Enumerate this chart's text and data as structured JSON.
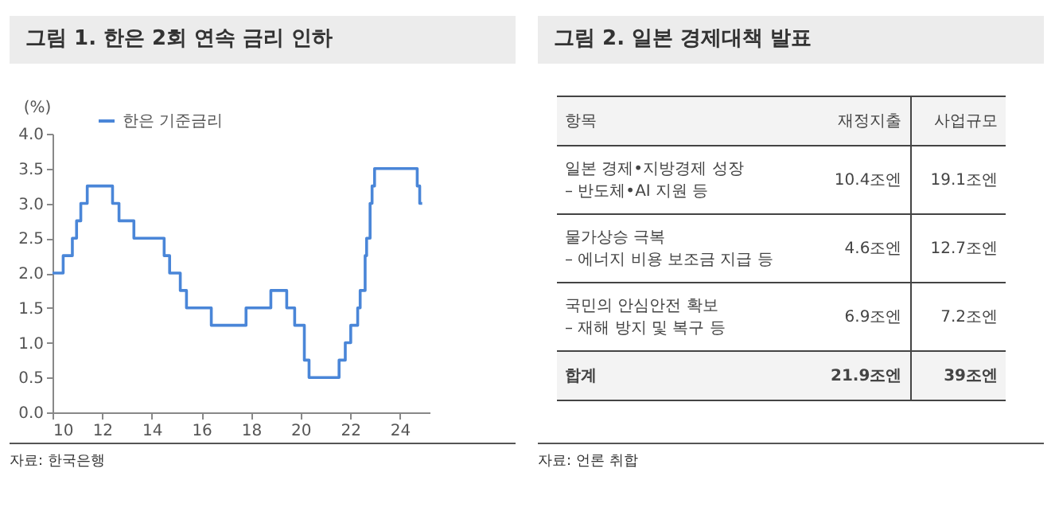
{
  "chart_data": [
    {
      "type": "step",
      "title": "그림 1. 한은 2회 연속 금리 인하",
      "ylabel": "(%)",
      "annotations": [
        "자료: 한국은행"
      ],
      "legend": "top left",
      "grid": false,
      "series": [
        {
          "name": "한은 기준금리",
          "color": "#4a86d8",
          "x": [
            10.0,
            10.43,
            10.8,
            10.97,
            11.14,
            11.4,
            12.42,
            12.68,
            13.28,
            14.5,
            14.72,
            15.15,
            15.4,
            16.4,
            17.8,
            18.8,
            19.44,
            19.76,
            20.15,
            20.34,
            21.55,
            21.8,
            22.02,
            22.3,
            22.4,
            22.6,
            22.66,
            22.8,
            22.88,
            22.98,
            24.7,
            24.8,
            24.9
          ],
          "values": [
            2.0,
            2.25,
            2.5,
            2.75,
            3.0,
            3.25,
            3.0,
            2.75,
            2.5,
            2.25,
            2.0,
            1.75,
            1.5,
            1.25,
            1.5,
            1.75,
            1.5,
            1.25,
            0.75,
            0.5,
            0.75,
            1.0,
            1.25,
            1.5,
            1.75,
            2.25,
            2.5,
            3.0,
            3.25,
            3.5,
            3.25,
            3.0,
            3.0
          ]
        }
      ],
      "xlim": [
        10,
        25.2
      ],
      "xticks": [
        10,
        12,
        14,
        16,
        18,
        20,
        22,
        24
      ],
      "ylim": [
        0,
        4
      ],
      "yticks": [
        {
          "value": 0,
          "label": "0.0"
        },
        {
          "value": 0.5,
          "label": "0.5"
        },
        {
          "value": 1,
          "label": "1.0"
        },
        {
          "value": 1.5,
          "label": "1.5"
        },
        {
          "value": 2,
          "label": "2.0"
        },
        {
          "value": 2.5,
          "label": "2.5"
        },
        {
          "value": 3,
          "label": "3.0"
        },
        {
          "value": 3.5,
          "label": "3.5"
        },
        {
          "value": 4,
          "label": "4.0"
        }
      ]
    },
    {
      "type": "other",
      "title": "그림 2. 일본 경제대책 발표",
      "annotations": [
        "항목",
        "재정지출",
        "사업규모",
        "일본 경제•지방경제 성장\n– 반도체•AI 지원 등",
        "10.4조엔",
        "19.1조엔",
        "물가상승 극복\n– 에너지 비용 보조금 지급 등",
        "4.6조엔",
        "12.7조엔",
        "국민의 안심안전 확보\n– 재해 방지 및 복구 등",
        "6.9조엔",
        "7.2조엔",
        "합계",
        "21.9조엔",
        "39조엔",
        "자료: 언론 취합"
      ]
    }
  ]
}
